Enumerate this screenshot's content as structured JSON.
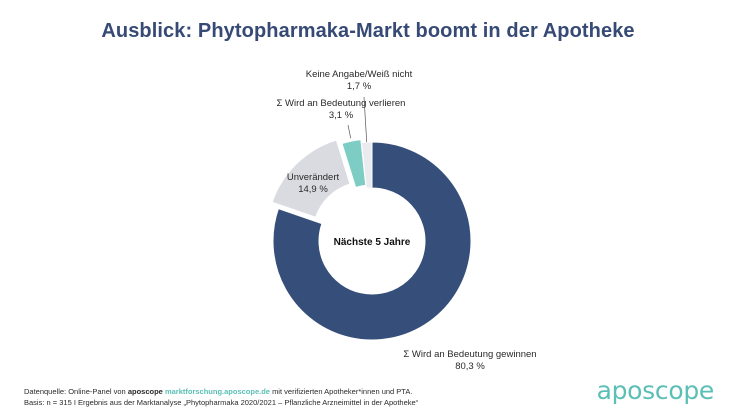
{
  "title": "Ausblick: Phytopharmaka-Markt boomt in der Apotheke",
  "chart_data": {
    "type": "pie",
    "variant": "donut",
    "center_label": "Nächste 5 Jahre",
    "slices": [
      {
        "label": "Σ Wird an Bedeutung gewinnen",
        "value": 80.3,
        "value_label": "80,3 %",
        "color": "#354f7a"
      },
      {
        "label": "Unverändert",
        "value": 14.9,
        "value_label": "14,9 %",
        "color": "#d9dbe1"
      },
      {
        "label": "Σ Wird an Bedeutung verlieren",
        "value": 3.1,
        "value_label": "3,1 %",
        "color": "#7ecdc4"
      },
      {
        "label": "Keine Angabe/Weiß nicht",
        "value": 1.7,
        "value_label": "1,7 %",
        "color": "#eaebee"
      }
    ]
  },
  "footer": {
    "line1_prefix": "Datenquelle: Online-Panel von",
    "brand": "aposcope",
    "url": "marktforschung.aposcope.de",
    "line1_suffix": "mit verifizierten Apotheker*innen und PTA.",
    "line2": "Basis: n = 315 I Ergebnis aus der Marktanalyse „Phytopharmaka 2020/2021 – Pflanzliche Arzneimittel in der Apotheke“"
  },
  "logo": "aposcope"
}
